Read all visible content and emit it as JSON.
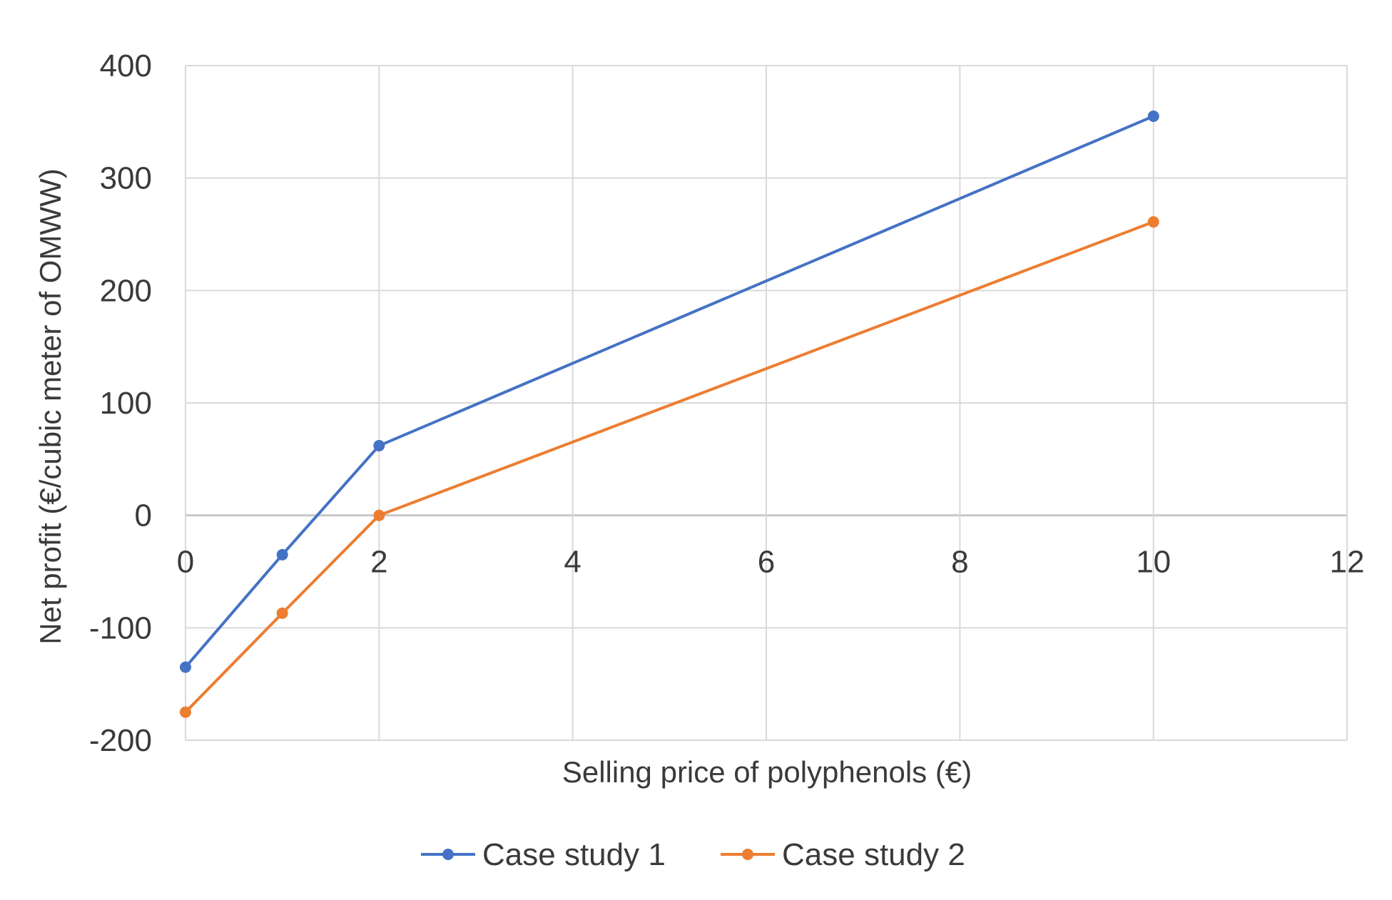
{
  "chart_data": {
    "type": "line",
    "title": "",
    "xlabel": "Selling price of polyphenols (€)",
    "ylabel": "Net profit (€/cubic meter of OMWW)",
    "xlim": [
      0,
      12
    ],
    "ylim": [
      -200,
      400
    ],
    "x_ticks": [
      0,
      2,
      4,
      6,
      8,
      10,
      12
    ],
    "y_ticks": [
      -200,
      -100,
      0,
      100,
      200,
      300,
      400
    ],
    "x_tick_labels": [
      "0",
      "2",
      "4",
      "6",
      "8",
      "10",
      "12"
    ],
    "y_tick_labels": [
      "-200",
      "-100",
      "0",
      "100",
      "200",
      "300",
      "400"
    ],
    "grid": true,
    "legend_position": "bottom",
    "series": [
      {
        "name": "Case study 1",
        "color": "#4472C4",
        "x": [
          0,
          1,
          2,
          10
        ],
        "y": [
          -135,
          -35,
          62,
          355
        ]
      },
      {
        "name": "Case study 2",
        "color": "#ED7D31",
        "x": [
          0,
          1,
          2,
          10
        ],
        "y": [
          -175,
          -87,
          0,
          261
        ]
      }
    ]
  }
}
